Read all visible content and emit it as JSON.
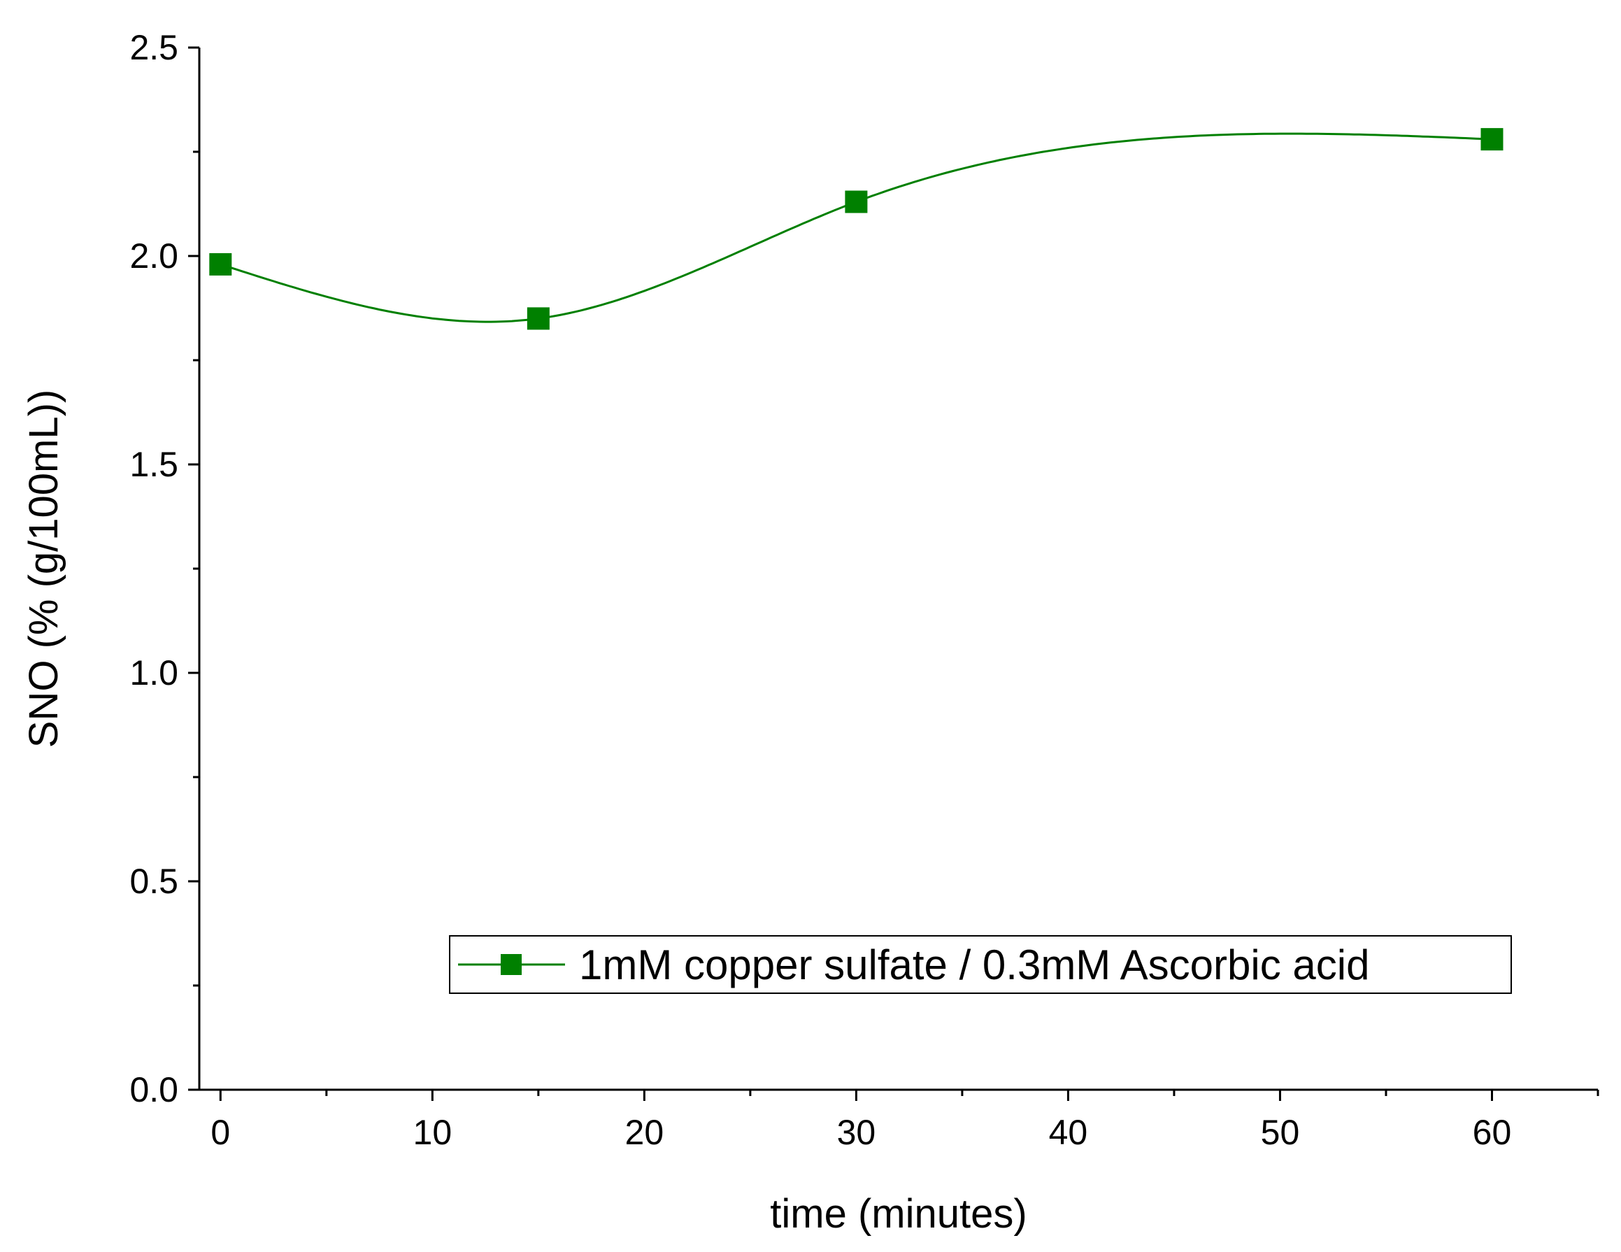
{
  "chart_data": {
    "type": "line",
    "title": "",
    "xlabel": "time (minutes)",
    "ylabel": "SNO (% (g/100mL))",
    "xlim": [
      -1,
      65
    ],
    "ylim": [
      0,
      2.5
    ],
    "x_ticks": [
      0,
      10,
      20,
      30,
      40,
      50,
      60
    ],
    "x_minor_ticks": [
      5,
      15,
      25,
      35,
      45,
      55,
      65
    ],
    "y_ticks": [
      0.0,
      0.5,
      1.0,
      1.5,
      2.0,
      2.5
    ],
    "y_tick_labels": [
      "0.0",
      "0.5",
      "1.0",
      "1.5",
      "2.0",
      "2.5"
    ],
    "y_minor_ticks": [
      0.25,
      0.75,
      1.25,
      1.75,
      2.25
    ],
    "grid": false,
    "legend_position": "bottom-right",
    "smooth_line": true,
    "series": [
      {
        "name": "1mM copper sulfate / 0.3mM Ascorbic acid",
        "color": "#008000",
        "marker": "square",
        "x": [
          0,
          15,
          30,
          60
        ],
        "y": [
          1.98,
          1.85,
          2.13,
          2.28
        ]
      }
    ]
  }
}
